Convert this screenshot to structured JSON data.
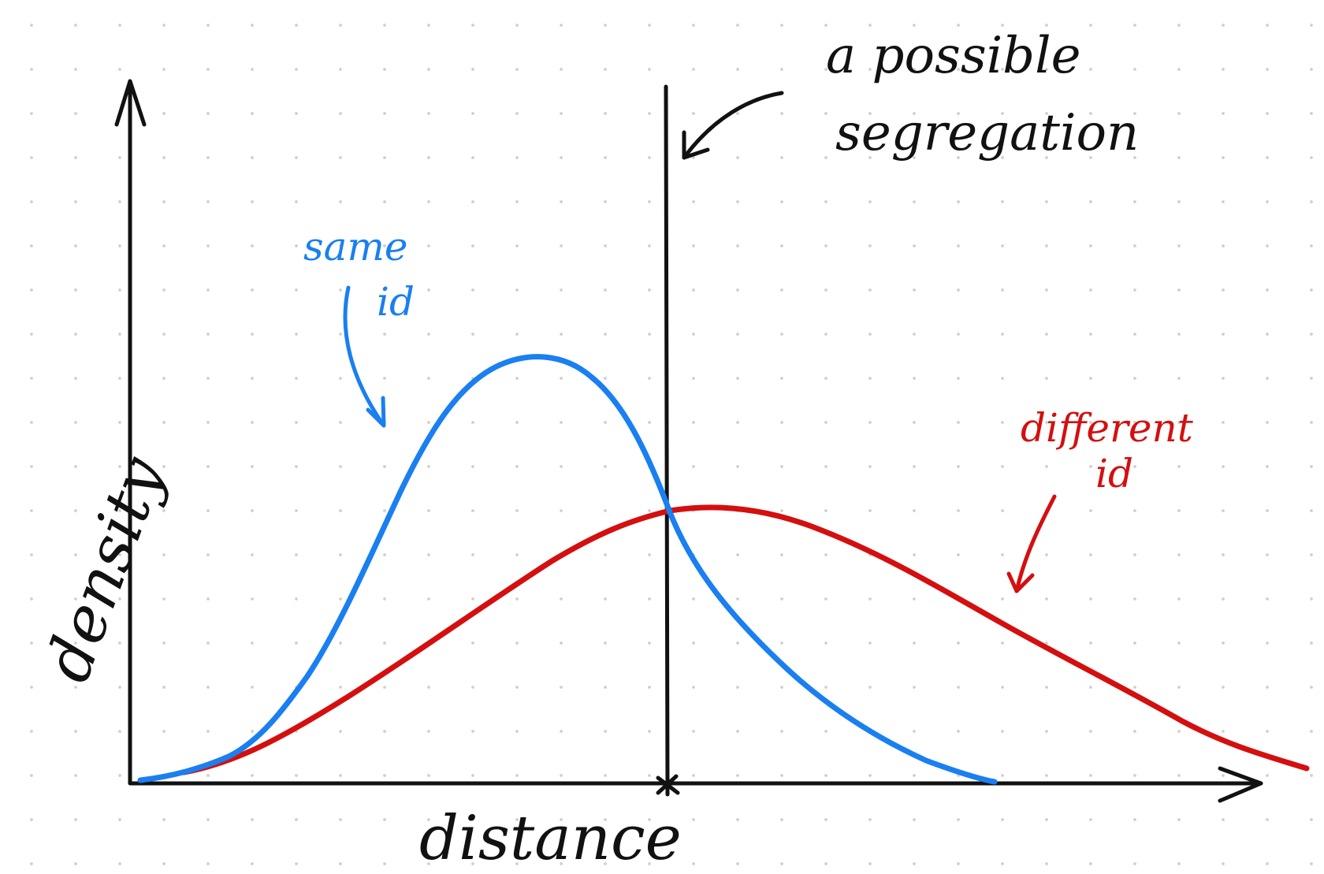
{
  "annotations": {
    "threshold_label_line1": "a possible",
    "threshold_label_line2": "segregation",
    "same_line1": "same",
    "same_line2": "id",
    "diff_line1": "different",
    "diff_line2": "id"
  },
  "axes": {
    "x_label": "distance",
    "y_label": "density"
  },
  "colors": {
    "ink": "#111111",
    "same_id": "#1a7ff0",
    "different_id": "#d40f0f",
    "dots": "#cfcfcf"
  },
  "icons": {
    "x_axis_arrow": "arrow-right-icon",
    "y_axis_arrow": "arrow-up-icon",
    "threshold_pointer": "curved-arrow-icon"
  }
}
